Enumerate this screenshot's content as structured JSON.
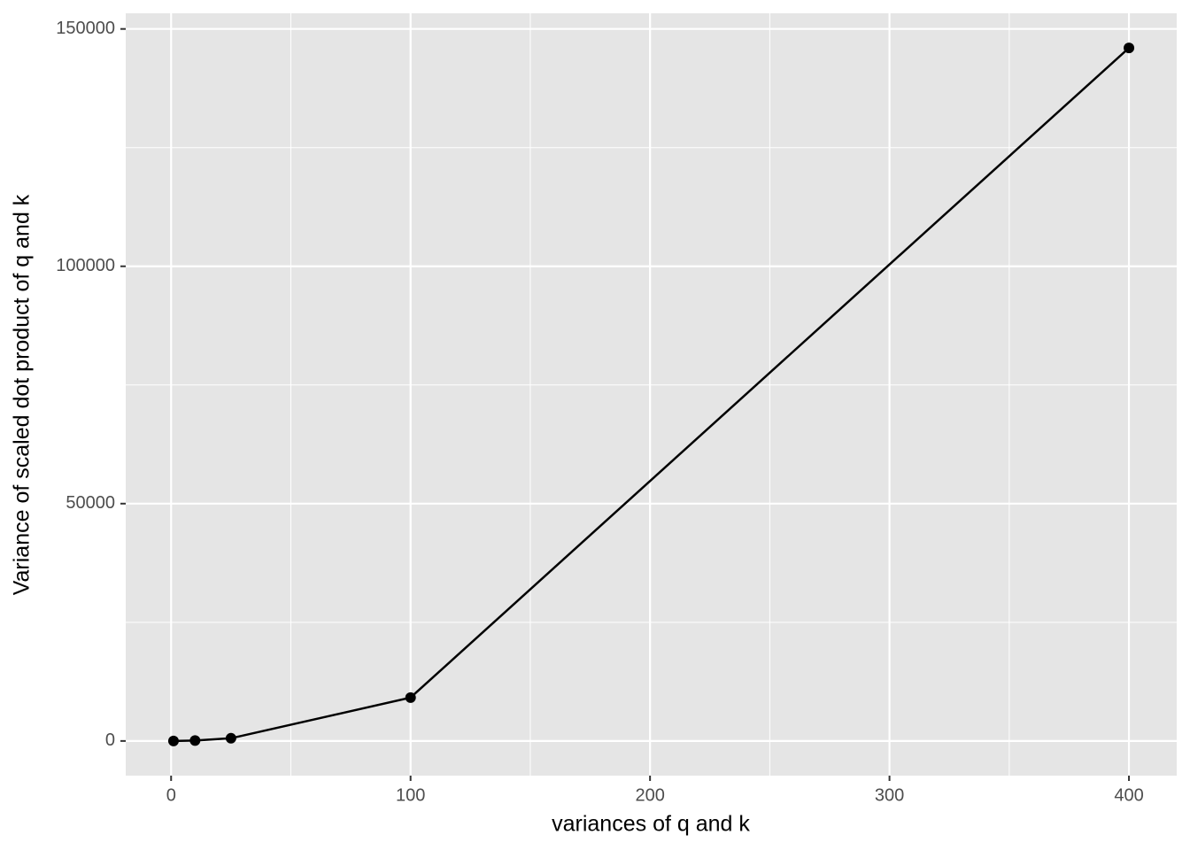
{
  "chart_data": {
    "type": "line",
    "x_label": "variances of q and k",
    "y_label": "Variance of scaled dot product of q and k",
    "x": [
      1,
      10,
      25,
      100,
      400
    ],
    "series": [
      {
        "color": "#000000",
        "values": [
          1,
          90,
          570,
          9140,
          146000
        ]
      }
    ],
    "xlim": [
      -18.95,
      419.95
    ],
    "xticks": [
      0,
      100,
      200,
      300,
      400
    ],
    "ylim": [
      -7300,
      153300
    ],
    "yticks": [
      0,
      50000,
      100000,
      150000
    ],
    "x_minor_grid": [
      50,
      150,
      250,
      350
    ],
    "y_minor_grid": [
      25000,
      75000,
      125000
    ],
    "grid": true,
    "panel_color": "#e5e5e5",
    "grid_color": "#ffffff"
  }
}
